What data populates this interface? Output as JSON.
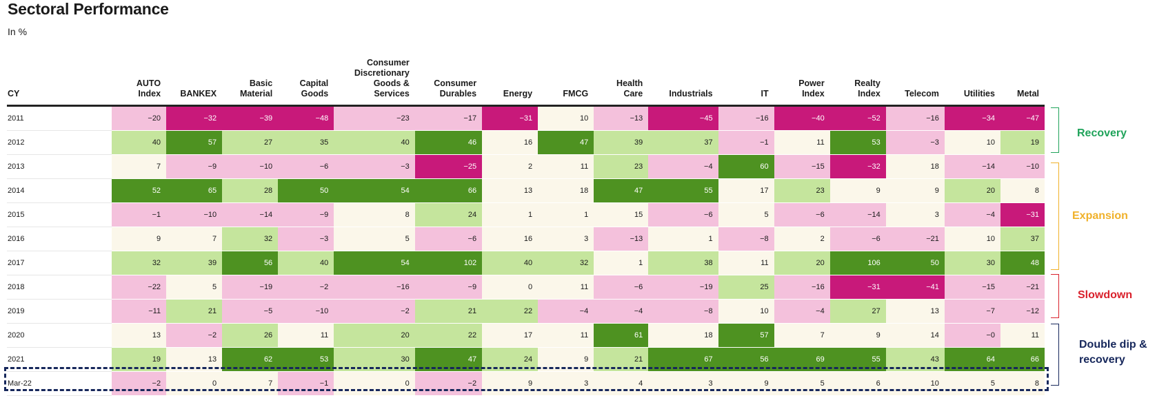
{
  "header": {
    "title": "Sectoral Performance",
    "subtitle": "In %"
  },
  "chart_data": {
    "type": "heatmap",
    "row_header": "CY",
    "columns": [
      "AUTO Index",
      "BANKEX",
      "Basic Material",
      "Capital Goods",
      "Consumer Discretionary Goods & Services",
      "Consumer Durables",
      "Energy",
      "FMCG",
      "Health Care",
      "Industrials",
      "IT",
      "Power Index",
      "Realty Index",
      "Telecom",
      "Utilities",
      "Metal"
    ],
    "column_header_lines": [
      [
        "AUTO",
        "Index"
      ],
      [
        "BANKEX"
      ],
      [
        "Basic",
        "Material"
      ],
      [
        "Capital",
        "Goods"
      ],
      [
        "Consumer",
        "Discretionary",
        "Goods &",
        "Services"
      ],
      [
        "Consumer",
        "Durables"
      ],
      [
        "Energy"
      ],
      [
        "FMCG"
      ],
      [
        "Health",
        "Care"
      ],
      [
        "Industrials"
      ],
      [
        "IT"
      ],
      [
        "Power",
        "Index"
      ],
      [
        "Realty",
        "Index"
      ],
      [
        "Telecom"
      ],
      [
        "Utilities"
      ],
      [
        "Metal"
      ]
    ],
    "rows": [
      {
        "label": "2011",
        "values": [
          "−20",
          "−32",
          "−39",
          "−48",
          "−23",
          "−17",
          "−31",
          "10",
          "−13",
          "−45",
          "−16",
          "−40",
          "−52",
          "−16",
          "−34",
          "−47"
        ]
      },
      {
        "label": "2012",
        "values": [
          "40",
          "57",
          "27",
          "35",
          "40",
          "46",
          "16",
          "47",
          "39",
          "37",
          "−1",
          "11",
          "53",
          "−3",
          "10",
          "19"
        ]
      },
      {
        "label": "2013",
        "values": [
          "7",
          "−9",
          "−10",
          "−6",
          "−3",
          "−25",
          "2",
          "11",
          "23",
          "−4",
          "60",
          "−15",
          "−32",
          "18",
          "−14",
          "−10"
        ]
      },
      {
        "label": "2014",
        "values": [
          "52",
          "65",
          "28",
          "50",
          "54",
          "66",
          "13",
          "18",
          "47",
          "55",
          "17",
          "23",
          "9",
          "9",
          "20",
          "8"
        ]
      },
      {
        "label": "2015",
        "values": [
          "−1",
          "−10",
          "−14",
          "−9",
          "8",
          "24",
          "1",
          "1",
          "15",
          "−6",
          "5",
          "−6",
          "−14",
          "3",
          "−4",
          "−31"
        ]
      },
      {
        "label": "2016",
        "values": [
          "9",
          "7",
          "32",
          "−3",
          "5",
          "−6",
          "16",
          "3",
          "−13",
          "1",
          "−8",
          "2",
          "−6",
          "−21",
          "10",
          "37"
        ]
      },
      {
        "label": "2017",
        "values": [
          "32",
          "39",
          "56",
          "40",
          "54",
          "102",
          "40",
          "32",
          "1",
          "38",
          "11",
          "20",
          "106",
          "50",
          "30",
          "48"
        ]
      },
      {
        "label": "2018",
        "values": [
          "−22",
          "5",
          "−19",
          "−2",
          "−16",
          "−9",
          "0",
          "11",
          "−6",
          "−19",
          "25",
          "−16",
          "−31",
          "−41",
          "−15",
          "−21"
        ]
      },
      {
        "label": "2019",
        "values": [
          "−11",
          "21",
          "−5",
          "−10",
          "−2",
          "21",
          "22",
          "−4",
          "−4",
          "−8",
          "10",
          "−4",
          "27",
          "13",
          "−7",
          "−12"
        ]
      },
      {
        "label": "2020",
        "values": [
          "13",
          "−2",
          "26",
          "11",
          "20",
          "22",
          "17",
          "11",
          "61",
          "18",
          "57",
          "7",
          "9",
          "14",
          "−0",
          "11"
        ]
      },
      {
        "label": "2021",
        "values": [
          "19",
          "13",
          "62",
          "53",
          "30",
          "47",
          "24",
          "9",
          "21",
          "67",
          "56",
          "69",
          "55",
          "43",
          "64",
          "66"
        ]
      },
      {
        "label": "Mar-22",
        "values": [
          "−2",
          "0",
          "7",
          "−1",
          "0",
          "−2",
          "9",
          "3",
          "4",
          "3",
          "9",
          "5",
          "6",
          "10",
          "5",
          "8"
        ]
      }
    ],
    "color_scale": {
      "strong_negative": "#c8197a",
      "negative": "#f4c1dc",
      "neutral": "#fbf7ea",
      "positive": "#c5e59d",
      "strong_positive": "#4e9221"
    }
  },
  "phases": [
    {
      "label": "Recovery",
      "color": "#1fa35a"
    },
    {
      "label": "Expansion",
      "color": "#f0b12a"
    },
    {
      "label": "Slowdown",
      "color": "#d9212c"
    },
    {
      "label": "Double dip & recovery",
      "color": "#16275b"
    }
  ]
}
